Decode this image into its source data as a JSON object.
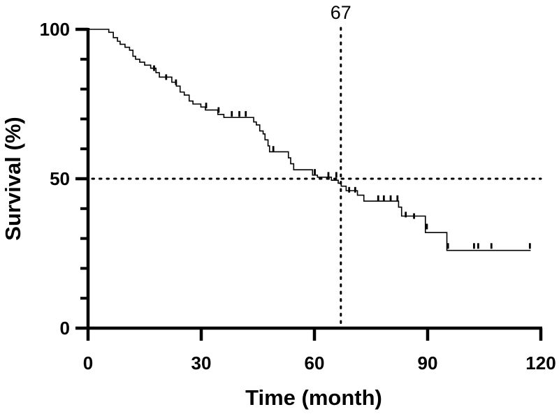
{
  "chart_data": {
    "type": "line",
    "subtype": "kaplan-meier",
    "title": "",
    "xlabel": "Time (month)",
    "ylabel": "Survival (%)",
    "xlim": [
      0,
      120
    ],
    "ylim": [
      0,
      100
    ],
    "xticks": [
      0,
      30,
      60,
      90,
      120
    ],
    "xtick_labels": [
      "0",
      "30",
      "60",
      "90",
      "120"
    ],
    "yticks": [
      0,
      50,
      100
    ],
    "ytick_labels": [
      "0",
      "50",
      "100"
    ],
    "y_minor_step": 10,
    "grid": false,
    "series": [
      {
        "name": "Survival",
        "steps": [
          [
            0,
            100
          ],
          [
            5.5,
            99
          ],
          [
            6.7,
            97.2
          ],
          [
            7.8,
            96
          ],
          [
            8.5,
            95
          ],
          [
            9.8,
            94
          ],
          [
            11,
            93
          ],
          [
            11.9,
            91
          ],
          [
            12.6,
            90
          ],
          [
            13.7,
            89
          ],
          [
            15,
            88
          ],
          [
            16.6,
            87
          ],
          [
            18,
            85.5
          ],
          [
            18.9,
            84
          ],
          [
            22.2,
            82.3
          ],
          [
            23.4,
            81
          ],
          [
            24.4,
            79
          ],
          [
            25.5,
            78
          ],
          [
            26.8,
            76
          ],
          [
            27.8,
            75
          ],
          [
            29.9,
            74
          ],
          [
            31.1,
            73
          ],
          [
            34.4,
            71.5
          ],
          [
            36,
            70.5
          ],
          [
            43.9,
            69
          ],
          [
            44.6,
            68
          ],
          [
            45.5,
            66
          ],
          [
            46.4,
            65
          ],
          [
            46.9,
            63
          ],
          [
            47.7,
            61
          ],
          [
            48.1,
            59
          ],
          [
            53.1,
            57
          ],
          [
            53.7,
            55
          ],
          [
            54.5,
            53
          ],
          [
            59.5,
            51.2
          ],
          [
            60.8,
            50.5
          ],
          [
            64.5,
            49.5
          ],
          [
            66.3,
            48.5
          ],
          [
            67.1,
            47.5
          ],
          [
            68.4,
            46
          ],
          [
            71.4,
            44.5
          ],
          [
            73.1,
            42.5
          ],
          [
            82.3,
            40.5
          ],
          [
            83.1,
            37.5
          ],
          [
            89.4,
            32
          ],
          [
            95.1,
            26
          ],
          [
            117.3,
            26
          ]
        ],
        "censor_ticks": [
          [
            17.5,
            87
          ],
          [
            20.7,
            84
          ],
          [
            23.3,
            82.3
          ],
          [
            31.3,
            74.5
          ],
          [
            34.6,
            73
          ],
          [
            38.1,
            71.7
          ],
          [
            40.1,
            71.7
          ],
          [
            41.8,
            71.7
          ],
          [
            49.1,
            60
          ],
          [
            60.1,
            52.3
          ],
          [
            63.7,
            51.3
          ],
          [
            65.8,
            51.3
          ],
          [
            69.2,
            46.3
          ],
          [
            70.8,
            46.3
          ],
          [
            76.9,
            43.5
          ],
          [
            78.4,
            43.5
          ],
          [
            80.2,
            43.5
          ],
          [
            82,
            43.5
          ],
          [
            84.2,
            38
          ],
          [
            86.4,
            37.5
          ],
          [
            89.8,
            34
          ],
          [
            95.4,
            27.5
          ],
          [
            102.3,
            27.5
          ],
          [
            103.4,
            27.5
          ],
          [
            106.9,
            27.5
          ],
          [
            117.1,
            27.5
          ]
        ]
      }
    ],
    "reference_lines": [
      {
        "orientation": "horizontal",
        "value": 50,
        "style": "dotted"
      },
      {
        "orientation": "vertical",
        "value": 67,
        "style": "dotted"
      }
    ],
    "annotations": [
      {
        "text": "67",
        "x": 67,
        "anchor": "top"
      }
    ]
  }
}
